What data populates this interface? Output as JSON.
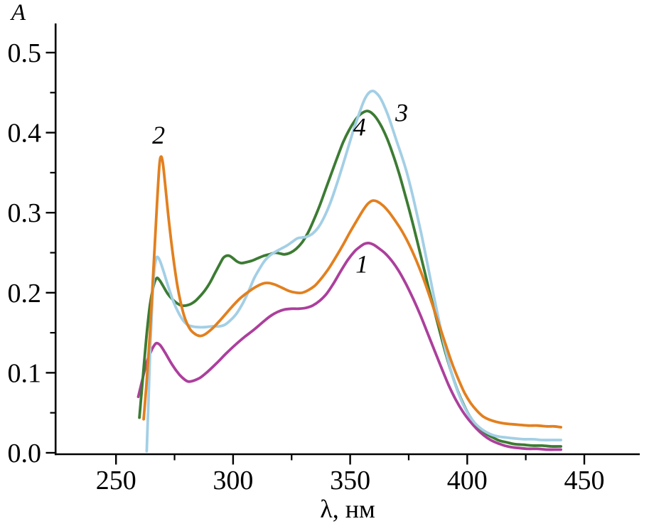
{
  "figure": {
    "background": "#ffffff",
    "axis_color": "#000000",
    "ylabel": "A",
    "xlabel": "λ, нм"
  },
  "chart_data": {
    "type": "line",
    "title": "",
    "xlabel": "λ, нм",
    "ylabel": "A",
    "xlim": [
      224,
      474
    ],
    "ylim": [
      0.0,
      0.535
    ],
    "grid": false,
    "legend": "inline numeric labels next to curves",
    "x_ticks_major": [
      250,
      300,
      350,
      400,
      450
    ],
    "x_ticks_minor": [
      275,
      325,
      375,
      425
    ],
    "y_ticks_major": [
      0.0,
      0.1,
      0.2,
      0.3,
      0.4,
      0.5
    ],
    "y_ticks_minor": [
      0.05,
      0.15,
      0.25,
      0.35,
      0.45
    ],
    "series": [
      {
        "name": "1",
        "color": "#AC3F9C",
        "label": "1",
        "label_pos": [
          355.0,
          0.236
        ],
        "points": [
          [
            259.5,
            0.07
          ],
          [
            261,
            0.088
          ],
          [
            263,
            0.112
          ],
          [
            265,
            0.127
          ],
          [
            266.5,
            0.135
          ],
          [
            267.5,
            0.137
          ],
          [
            269,
            0.134
          ],
          [
            271,
            0.125
          ],
          [
            274,
            0.11
          ],
          [
            277,
            0.098
          ],
          [
            279.5,
            0.091
          ],
          [
            281,
            0.089
          ],
          [
            283,
            0.09
          ],
          [
            286,
            0.094
          ],
          [
            289,
            0.101
          ],
          [
            293,
            0.112
          ],
          [
            297,
            0.124
          ],
          [
            301,
            0.135
          ],
          [
            305,
            0.145
          ],
          [
            309,
            0.154
          ],
          [
            313,
            0.164
          ],
          [
            316,
            0.171
          ],
          [
            319,
            0.176
          ],
          [
            322,
            0.179
          ],
          [
            325,
            0.18
          ],
          [
            328,
            0.18
          ],
          [
            331,
            0.181
          ],
          [
            334,
            0.184
          ],
          [
            337,
            0.19
          ],
          [
            340,
            0.199
          ],
          [
            343,
            0.212
          ],
          [
            346,
            0.227
          ],
          [
            349,
            0.241
          ],
          [
            352,
            0.252
          ],
          [
            354,
            0.257
          ],
          [
            356,
            0.261
          ],
          [
            358,
            0.262
          ],
          [
            360,
            0.26
          ],
          [
            362,
            0.256
          ],
          [
            365,
            0.249
          ],
          [
            368,
            0.239
          ],
          [
            371,
            0.226
          ],
          [
            374,
            0.21
          ],
          [
            377,
            0.192
          ],
          [
            380,
            0.172
          ],
          [
            383,
            0.15
          ],
          [
            386,
            0.128
          ],
          [
            389,
            0.106
          ],
          [
            392,
            0.085
          ],
          [
            395,
            0.067
          ],
          [
            398,
            0.052
          ],
          [
            401,
            0.04
          ],
          [
            404,
            0.03
          ],
          [
            407,
            0.022
          ],
          [
            410,
            0.016
          ],
          [
            413,
            0.012
          ],
          [
            416,
            0.009
          ],
          [
            419,
            0.007
          ],
          [
            422,
            0.006
          ],
          [
            426,
            0.005
          ],
          [
            430,
            0.005
          ],
          [
            434,
            0.004
          ],
          [
            437,
            0.004
          ],
          [
            440,
            0.004
          ]
        ]
      },
      {
        "name": "4",
        "color": "#3C7B33",
        "label": "4",
        "label_pos": [
          354.0,
          0.407
        ],
        "points": [
          [
            260,
            0.044
          ],
          [
            261.5,
            0.095
          ],
          [
            263,
            0.145
          ],
          [
            264.5,
            0.185
          ],
          [
            266,
            0.208
          ],
          [
            267.3,
            0.218
          ],
          [
            268.5,
            0.216
          ],
          [
            270,
            0.209
          ],
          [
            272,
            0.199
          ],
          [
            274,
            0.192
          ],
          [
            276,
            0.187
          ],
          [
            278,
            0.184
          ],
          [
            280,
            0.184
          ],
          [
            282,
            0.186
          ],
          [
            284,
            0.19
          ],
          [
            286,
            0.196
          ],
          [
            288,
            0.203
          ],
          [
            290,
            0.212
          ],
          [
            292,
            0.223
          ],
          [
            294,
            0.234
          ],
          [
            295.7,
            0.243
          ],
          [
            297,
            0.246
          ],
          [
            298.5,
            0.246
          ],
          [
            300,
            0.243
          ],
          [
            301.7,
            0.239
          ],
          [
            303.5,
            0.237
          ],
          [
            305.5,
            0.238
          ],
          [
            308,
            0.24
          ],
          [
            310.5,
            0.243
          ],
          [
            313,
            0.246
          ],
          [
            315.5,
            0.248
          ],
          [
            318,
            0.25
          ],
          [
            320,
            0.249
          ],
          [
            322,
            0.248
          ],
          [
            324.5,
            0.25
          ],
          [
            327,
            0.255
          ],
          [
            329.5,
            0.263
          ],
          [
            332,
            0.275
          ],
          [
            334.5,
            0.291
          ],
          [
            337,
            0.309
          ],
          [
            339.5,
            0.329
          ],
          [
            342,
            0.349
          ],
          [
            344.5,
            0.369
          ],
          [
            347,
            0.388
          ],
          [
            349.5,
            0.403
          ],
          [
            352,
            0.415
          ],
          [
            354,
            0.422
          ],
          [
            356,
            0.426
          ],
          [
            357.5,
            0.427
          ],
          [
            359,
            0.425
          ],
          [
            361,
            0.419
          ],
          [
            363.5,
            0.407
          ],
          [
            366,
            0.391
          ],
          [
            368.5,
            0.371
          ],
          [
            371,
            0.348
          ],
          [
            373.5,
            0.322
          ],
          [
            376,
            0.295
          ],
          [
            378.5,
            0.266
          ],
          [
            381,
            0.236
          ],
          [
            383.5,
            0.206
          ],
          [
            386,
            0.177
          ],
          [
            388.5,
            0.149
          ],
          [
            391,
            0.122
          ],
          [
            393.5,
            0.098
          ],
          [
            396,
            0.077
          ],
          [
            398.5,
            0.06
          ],
          [
            401,
            0.046
          ],
          [
            403.5,
            0.036
          ],
          [
            406,
            0.029
          ],
          [
            408.5,
            0.023
          ],
          [
            411,
            0.019
          ],
          [
            414,
            0.015
          ],
          [
            417,
            0.013
          ],
          [
            420,
            0.011
          ],
          [
            424,
            0.01
          ],
          [
            428,
            0.009
          ],
          [
            432,
            0.009
          ],
          [
            436,
            0.008
          ],
          [
            440,
            0.008
          ]
        ]
      },
      {
        "name": "3",
        "color": "#A3CFE5",
        "label": "3",
        "label_pos": [
          372.0,
          0.425
        ],
        "points": [
          [
            263.1,
            0.002
          ],
          [
            263.8,
            0.06
          ],
          [
            264.6,
            0.13
          ],
          [
            265.5,
            0.19
          ],
          [
            266.3,
            0.227
          ],
          [
            267.2,
            0.243
          ],
          [
            268,
            0.244
          ],
          [
            269,
            0.238
          ],
          [
            270.5,
            0.225
          ],
          [
            272.5,
            0.206
          ],
          [
            274.5,
            0.189
          ],
          [
            276.5,
            0.176
          ],
          [
            278.5,
            0.166
          ],
          [
            280.5,
            0.16
          ],
          [
            282.5,
            0.158
          ],
          [
            285,
            0.157
          ],
          [
            288,
            0.157
          ],
          [
            291,
            0.158
          ],
          [
            294,
            0.158
          ],
          [
            296.5,
            0.16
          ],
          [
            299,
            0.166
          ],
          [
            301.5,
            0.174
          ],
          [
            304,
            0.186
          ],
          [
            306.5,
            0.201
          ],
          [
            309,
            0.218
          ],
          [
            311.5,
            0.231
          ],
          [
            313.5,
            0.24
          ],
          [
            315.5,
            0.246
          ],
          [
            318,
            0.251
          ],
          [
            320.5,
            0.255
          ],
          [
            323,
            0.259
          ],
          [
            325.5,
            0.264
          ],
          [
            327.5,
            0.268
          ],
          [
            329.5,
            0.269
          ],
          [
            331.5,
            0.27
          ],
          [
            334,
            0.274
          ],
          [
            336.5,
            0.282
          ],
          [
            339,
            0.295
          ],
          [
            341.5,
            0.312
          ],
          [
            344,
            0.333
          ],
          [
            346.5,
            0.356
          ],
          [
            349,
            0.38
          ],
          [
            351.5,
            0.404
          ],
          [
            353.5,
            0.421
          ],
          [
            355.5,
            0.437
          ],
          [
            357,
            0.446
          ],
          [
            358.5,
            0.451
          ],
          [
            359.8,
            0.452
          ],
          [
            361,
            0.45
          ],
          [
            362.5,
            0.445
          ],
          [
            364,
            0.437
          ],
          [
            366,
            0.423
          ],
          [
            368,
            0.406
          ],
          [
            370,
            0.388
          ],
          [
            372,
            0.371
          ],
          [
            374,
            0.352
          ],
          [
            376,
            0.33
          ],
          [
            378,
            0.305
          ],
          [
            380.5,
            0.272
          ],
          [
            383,
            0.236
          ],
          [
            385.5,
            0.199
          ],
          [
            388,
            0.164
          ],
          [
            390.5,
            0.131
          ],
          [
            393,
            0.103
          ],
          [
            395.5,
            0.08
          ],
          [
            398,
            0.062
          ],
          [
            400.5,
            0.048
          ],
          [
            403,
            0.038
          ],
          [
            405.5,
            0.031
          ],
          [
            408,
            0.026
          ],
          [
            411,
            0.022
          ],
          [
            414,
            0.02
          ],
          [
            417,
            0.019
          ],
          [
            420,
            0.018
          ],
          [
            424,
            0.017
          ],
          [
            428,
            0.017
          ],
          [
            432,
            0.016
          ],
          [
            436,
            0.016
          ],
          [
            440,
            0.016
          ]
        ]
      },
      {
        "name": "2",
        "color": "#E2801F",
        "label": "2",
        "label_pos": [
          268.2,
          0.397
        ],
        "points": [
          [
            261.8,
            0.042
          ],
          [
            263,
            0.085
          ],
          [
            264.5,
            0.15
          ],
          [
            266,
            0.23
          ],
          [
            267.5,
            0.31
          ],
          [
            268.5,
            0.358
          ],
          [
            269.2,
            0.37
          ],
          [
            270,
            0.362
          ],
          [
            271,
            0.335
          ],
          [
            272.5,
            0.292
          ],
          [
            274.5,
            0.243
          ],
          [
            276.5,
            0.204
          ],
          [
            279,
            0.172
          ],
          [
            281.5,
            0.155
          ],
          [
            284,
            0.148
          ],
          [
            286,
            0.146
          ],
          [
            288,
            0.148
          ],
          [
            291,
            0.155
          ],
          [
            294,
            0.164
          ],
          [
            297,
            0.174
          ],
          [
            300,
            0.184
          ],
          [
            303,
            0.193
          ],
          [
            306,
            0.2
          ],
          [
            309,
            0.206
          ],
          [
            311.5,
            0.21
          ],
          [
            313.5,
            0.212
          ],
          [
            315.5,
            0.212
          ],
          [
            318,
            0.21
          ],
          [
            321,
            0.206
          ],
          [
            324,
            0.202
          ],
          [
            327,
            0.2
          ],
          [
            329.5,
            0.2
          ],
          [
            332,
            0.203
          ],
          [
            335,
            0.209
          ],
          [
            338,
            0.219
          ],
          [
            341,
            0.231
          ],
          [
            344,
            0.245
          ],
          [
            347,
            0.26
          ],
          [
            350,
            0.276
          ],
          [
            353,
            0.291
          ],
          [
            355.5,
            0.303
          ],
          [
            357.5,
            0.311
          ],
          [
            359.5,
            0.315
          ],
          [
            361.5,
            0.314
          ],
          [
            364,
            0.309
          ],
          [
            366.5,
            0.301
          ],
          [
            369,
            0.291
          ],
          [
            371.5,
            0.28
          ],
          [
            374,
            0.267
          ],
          [
            376.5,
            0.252
          ],
          [
            379,
            0.235
          ],
          [
            381.5,
            0.216
          ],
          [
            384,
            0.195
          ],
          [
            386.5,
            0.173
          ],
          [
            389,
            0.151
          ],
          [
            391.5,
            0.129
          ],
          [
            394,
            0.108
          ],
          [
            396.5,
            0.09
          ],
          [
            399,
            0.074
          ],
          [
            401.5,
            0.062
          ],
          [
            404,
            0.053
          ],
          [
            406.5,
            0.046
          ],
          [
            409,
            0.042
          ],
          [
            412,
            0.039
          ],
          [
            415,
            0.037
          ],
          [
            418,
            0.036
          ],
          [
            422,
            0.035
          ],
          [
            426,
            0.034
          ],
          [
            430,
            0.034
          ],
          [
            434,
            0.033
          ],
          [
            437,
            0.033
          ],
          [
            440,
            0.032
          ]
        ]
      }
    ]
  }
}
